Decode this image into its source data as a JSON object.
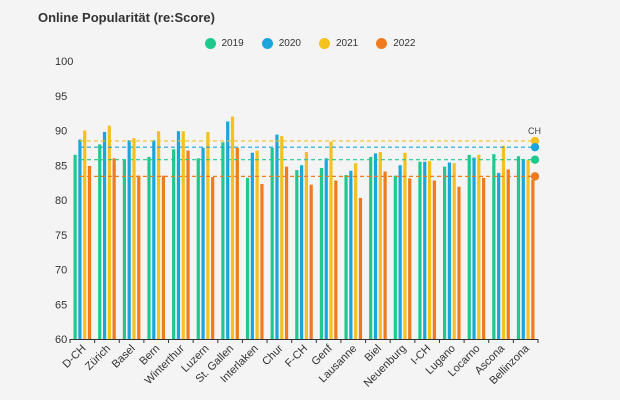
{
  "chart_data": {
    "type": "bar",
    "title": "Online Popularität (re:Score)",
    "categories": [
      "D-CH",
      "Zürich",
      "Basel",
      "Bern",
      "Winterthur",
      "Luzern",
      "St. Gallen",
      "Interlaken",
      "Chur",
      "F-CH",
      "Genf",
      "Lausanne",
      "Biel",
      "Neuenburg",
      "I-CH",
      "Lugano",
      "Locarno",
      "Ascona",
      "Bellinzona"
    ],
    "ylim": [
      60,
      100
    ],
    "yticks": [
      "60",
      "65",
      "70",
      "75",
      "80",
      "85",
      "90",
      "95",
      "100"
    ],
    "series": [
      {
        "name": "2019",
        "color": "#1fc98e",
        "values": [
          86.5,
          88.0,
          85.8,
          86.2,
          87.3,
          86.0,
          88.3,
          83.2,
          87.5,
          84.3,
          84.6,
          83.6,
          86.2,
          83.5,
          85.5,
          84.8,
          86.5,
          86.6,
          86.3
        ]
      },
      {
        "name": "2020",
        "color": "#1aa6dc",
        "values": [
          88.7,
          89.8,
          88.6,
          88.6,
          89.9,
          87.5,
          91.3,
          86.8,
          89.4,
          85.0,
          86.0,
          84.2,
          86.7,
          85.0,
          85.5,
          85.4,
          86.1,
          83.9,
          85.9
        ]
      },
      {
        "name": "2021",
        "color": "#f5c11e",
        "values": [
          90.0,
          90.7,
          88.9,
          89.9,
          89.9,
          89.8,
          92.0,
          87.1,
          89.2,
          86.9,
          88.4,
          85.3,
          86.9,
          86.8,
          85.6,
          85.3,
          86.5,
          87.8,
          85.8
        ]
      },
      {
        "name": "2022",
        "color": "#f07b1e",
        "values": [
          84.9,
          86.0,
          83.5,
          83.5,
          87.1,
          83.3,
          87.5,
          82.3,
          84.8,
          82.2,
          82.8,
          80.3,
          84.1,
          83.1,
          82.8,
          81.9,
          83.2,
          84.4,
          82.9
        ]
      }
    ],
    "reference_lines": {
      "label": "CH",
      "values": [
        {
          "series": "2021",
          "value": 88.5
        },
        {
          "series": "2020",
          "value": 87.6
        },
        {
          "series": "2019",
          "value": 85.8
        },
        {
          "series": "2022",
          "value": 83.4
        }
      ]
    },
    "grid": false,
    "legend": "top-center"
  }
}
